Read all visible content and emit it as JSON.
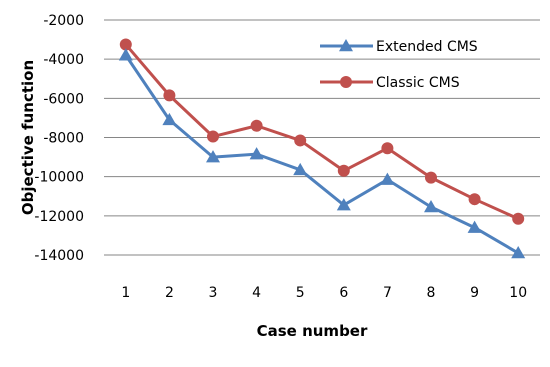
{
  "chart_data": {
    "type": "line",
    "title": "",
    "xlabel": "Case number",
    "ylabel": "Objective function",
    "categories": [
      "1",
      "2",
      "3",
      "4",
      "5",
      "6",
      "7",
      "8",
      "9",
      "10"
    ],
    "ylim": [
      -14000,
      -2000
    ],
    "yticks": [
      -2000,
      -4000,
      -6000,
      -8000,
      -10000,
      -12000,
      -14000
    ],
    "grid": "horizontal",
    "legend_position": "top-right",
    "series": [
      {
        "name": "Extended CMS",
        "color": "#4F81BD",
        "marker": "triangle",
        "values": [
          -3800,
          -7100,
          -9000,
          -8850,
          -9650,
          -11450,
          -10150,
          -11550,
          -12600,
          -13900
        ]
      },
      {
        "name": "Classic CMS",
        "color": "#C0504D",
        "marker": "circle",
        "values": [
          -3250,
          -5850,
          -7950,
          -7400,
          -8150,
          -9700,
          -8550,
          -10050,
          -11150,
          -12150
        ]
      }
    ]
  }
}
